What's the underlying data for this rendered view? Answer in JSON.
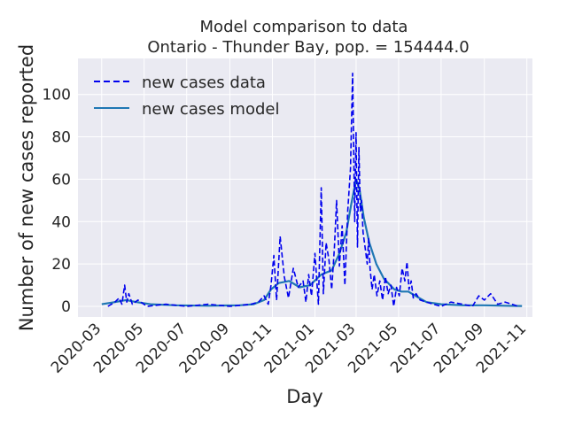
{
  "chart_data": {
    "type": "line",
    "title": "Model comparison to data",
    "subtitle": "Ontario - Thunder Bay, pop. = 154444.0",
    "xlabel": "Day",
    "ylabel": "Number of new cases reported",
    "x_ticks": [
      "2020-03",
      "2020-05",
      "2020-07",
      "2020-09",
      "2020-11",
      "2021-01",
      "2021-03",
      "2021-05",
      "2021-07",
      "2021-09",
      "2021-11"
    ],
    "y_ticks": [
      "0",
      "20",
      "40",
      "60",
      "80",
      "100"
    ],
    "xlim": [
      "2020-01-27",
      "2021-11-09"
    ],
    "ylim": [
      -5,
      117
    ],
    "grid": true,
    "legend_position": "top-left",
    "series": [
      {
        "name": "new cases data",
        "style": "dashed",
        "color": "#0000ee",
        "x": [
          "2020-03-10",
          "2020-03-20",
          "2020-03-26",
          "2020-03-30",
          "2020-04-03",
          "2020-04-06",
          "2020-04-09",
          "2020-04-14",
          "2020-04-22",
          "2020-05-05",
          "2020-06-01",
          "2020-07-01",
          "2020-08-01",
          "2020-09-01",
          "2020-10-01",
          "2020-10-12",
          "2020-10-20",
          "2020-10-26",
          "2020-10-30",
          "2020-11-03",
          "2020-11-07",
          "2020-11-12",
          "2020-11-18",
          "2020-11-24",
          "2020-12-01",
          "2020-12-08",
          "2020-12-15",
          "2020-12-19",
          "2020-12-23",
          "2020-12-27",
          "2021-01-01",
          "2021-01-06",
          "2021-01-10",
          "2021-01-13",
          "2021-01-17",
          "2021-01-21",
          "2021-01-25",
          "2021-01-29",
          "2021-02-01",
          "2021-02-05",
          "2021-02-09",
          "2021-02-13",
          "2021-02-17",
          "2021-02-21",
          "2021-02-24",
          "2021-02-27",
          "2021-03-01",
          "2021-03-03",
          "2021-03-05",
          "2021-03-07",
          "2021-03-09",
          "2021-03-11",
          "2021-03-13",
          "2021-03-15",
          "2021-03-17",
          "2021-03-19",
          "2021-03-21",
          "2021-03-24",
          "2021-03-27",
          "2021-03-31",
          "2021-04-04",
          "2021-04-08",
          "2021-04-12",
          "2021-04-16",
          "2021-04-20",
          "2021-04-24",
          "2021-04-28",
          "2021-05-02",
          "2021-05-06",
          "2021-05-10",
          "2021-05-13",
          "2021-05-16",
          "2021-05-19",
          "2021-05-22",
          "2021-05-26",
          "2021-06-01",
          "2021-06-10",
          "2021-06-20",
          "2021-07-01",
          "2021-07-15",
          "2021-08-01",
          "2021-08-15",
          "2021-08-24",
          "2021-09-01",
          "2021-09-10",
          "2021-09-20",
          "2021-10-01",
          "2021-10-20"
        ],
        "y": [
          0,
          2,
          4,
          1,
          10,
          2,
          6,
          1,
          3,
          0,
          1,
          0,
          1,
          0,
          1,
          2,
          5,
          1,
          10,
          24,
          3,
          33,
          14,
          4,
          18,
          9,
          12,
          2,
          15,
          5,
          25,
          1,
          56,
          6,
          30,
          22,
          8,
          28,
          50,
          19,
          38,
          10,
          45,
          65,
          110,
          40,
          82,
          28,
          75,
          45,
          50,
          35,
          30,
          25,
          20,
          32,
          18,
          8,
          15,
          5,
          12,
          3,
          14,
          6,
          10,
          0,
          9,
          5,
          18,
          12,
          21,
          8,
          12,
          4,
          6,
          3,
          2,
          1,
          0,
          2,
          1,
          0,
          5,
          3,
          6,
          1,
          2,
          0
        ]
      },
      {
        "name": "new cases model",
        "style": "solid",
        "color": "#1f77b4",
        "x": [
          "2020-03-01",
          "2020-03-20",
          "2020-04-05",
          "2020-04-20",
          "2020-05-10",
          "2020-06-15",
          "2020-08-01",
          "2020-09-15",
          "2020-10-05",
          "2020-10-20",
          "2020-10-30",
          "2020-11-10",
          "2020-11-25",
          "2020-12-10",
          "2020-12-25",
          "2021-01-10",
          "2021-01-25",
          "2021-02-05",
          "2021-02-15",
          "2021-02-22",
          "2021-03-01",
          "2021-03-06",
          "2021-03-12",
          "2021-03-20",
          "2021-03-30",
          "2021-04-10",
          "2021-04-25",
          "2021-05-05",
          "2021-05-15",
          "2021-05-25",
          "2021-06-10",
          "2021-07-01",
          "2021-08-01",
          "2021-09-01",
          "2021-10-01",
          "2021-10-25"
        ],
        "y": [
          1,
          2,
          3,
          2,
          1,
          0.5,
          0.3,
          0.5,
          1,
          3,
          8,
          11,
          12,
          9,
          10,
          15,
          17,
          25,
          35,
          48,
          60,
          55,
          42,
          30,
          20,
          13,
          8,
          7,
          7,
          5,
          2,
          1,
          0.5,
          0.5,
          0.3,
          0.2
        ]
      }
    ]
  }
}
